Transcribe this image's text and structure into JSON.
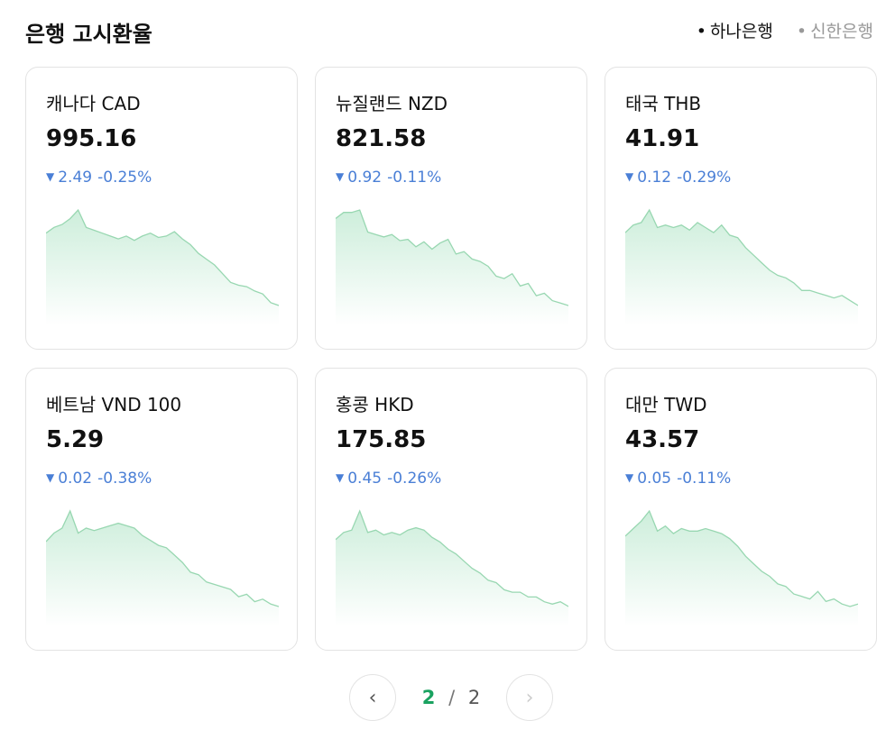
{
  "header": {
    "title": "은행 고시환율",
    "tabs": [
      "하나은행",
      "신한은행"
    ]
  },
  "cards": [
    {
      "name": "캐나다 CAD",
      "rate": "995.16",
      "change": "2.49",
      "percent": "-0.25%",
      "spark": [
        62,
        66,
        68,
        72,
        78,
        66,
        64,
        62,
        60,
        58,
        60,
        57,
        60,
        62,
        59,
        60,
        63,
        58,
        54,
        48,
        44,
        40,
        34,
        28,
        26,
        25,
        22,
        20,
        14,
        12
      ]
    },
    {
      "name": "뉴질랜드 NZD",
      "rate": "821.58",
      "change": "0.92",
      "percent": "-0.11%",
      "spark": [
        75,
        80,
        80,
        82,
        64,
        62,
        60,
        62,
        57,
        58,
        52,
        56,
        50,
        55,
        58,
        46,
        48,
        42,
        40,
        36,
        28,
        26,
        30,
        20,
        22,
        12,
        14,
        8,
        6,
        4
      ]
    },
    {
      "name": "태국 THB",
      "rate": "41.91",
      "change": "0.12",
      "percent": "-0.29%",
      "spark": [
        60,
        66,
        68,
        78,
        64,
        66,
        64,
        66,
        62,
        68,
        64,
        60,
        66,
        58,
        56,
        48,
        42,
        36,
        30,
        26,
        24,
        20,
        14,
        14,
        12,
        10,
        8,
        10,
        6,
        2
      ]
    },
    {
      "name": "베트남 VND 100",
      "rate": "5.29",
      "change": "0.02",
      "percent": "-0.38%",
      "spark": [
        55,
        62,
        66,
        80,
        62,
        66,
        64,
        66,
        68,
        70,
        68,
        66,
        60,
        56,
        52,
        50,
        44,
        38,
        30,
        28,
        22,
        20,
        18,
        16,
        10,
        12,
        6,
        8,
        4,
        2
      ]
    },
    {
      "name": "홍콩 HKD",
      "rate": "175.85",
      "change": "0.45",
      "percent": "-0.26%",
      "spark": [
        58,
        64,
        66,
        82,
        64,
        66,
        62,
        64,
        62,
        66,
        68,
        66,
        60,
        56,
        50,
        46,
        40,
        34,
        30,
        24,
        22,
        16,
        14,
        14,
        10,
        10,
        6,
        4,
        6,
        2
      ]
    },
    {
      "name": "대만 TWD",
      "rate": "43.57",
      "change": "0.05",
      "percent": "-0.11%",
      "spark": [
        58,
        64,
        70,
        78,
        62,
        66,
        60,
        64,
        62,
        62,
        64,
        62,
        60,
        56,
        50,
        42,
        36,
        30,
        26,
        20,
        18,
        12,
        10,
        8,
        14,
        6,
        8,
        4,
        2,
        4
      ]
    }
  ],
  "pagination": {
    "current": "2",
    "separator": "/",
    "total": "2"
  }
}
